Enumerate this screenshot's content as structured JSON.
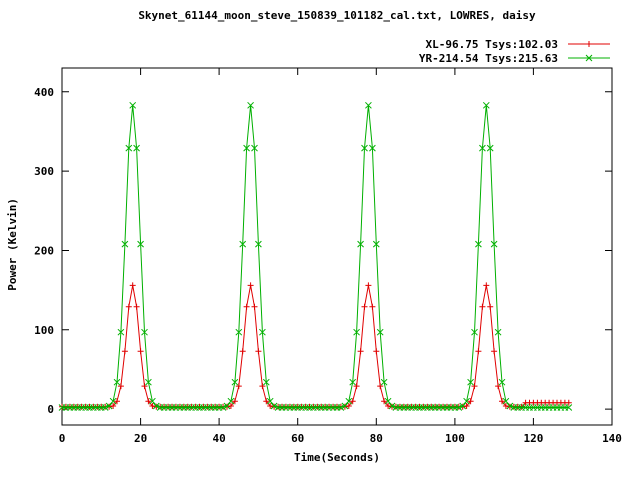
{
  "chart_data": {
    "type": "line",
    "title": "Skynet_61144_moon_steve_150839_101182_cal.txt, LOWRES, daisy",
    "xlabel": "Time(Seconds)",
    "ylabel": "Power (Kelvin)",
    "xlim": [
      0,
      140
    ],
    "ylim": [
      -20,
      430
    ],
    "x_ticks": [
      0,
      20,
      40,
      60,
      80,
      100,
      120,
      140
    ],
    "y_ticks": [
      0,
      100,
      200,
      300,
      400
    ],
    "x_start": 0,
    "x_step": 1,
    "grid": false,
    "legend_position": "top-right",
    "background": "#ffffff",
    "series": [
      {
        "name": "XL-96.75 Tsys:102.03",
        "color": "#e00000",
        "marker": "plus",
        "values": [
          3,
          3,
          3,
          3,
          3,
          3,
          3,
          3,
          3,
          3,
          3,
          3,
          3,
          4,
          10,
          29,
          73,
          129,
          156,
          129,
          73,
          29,
          10,
          4,
          3,
          3,
          3,
          3,
          3,
          3,
          3,
          3,
          3,
          3,
          3,
          3,
          3,
          3,
          3,
          3,
          3,
          3,
          3,
          4,
          10,
          29,
          73,
          129,
          156,
          129,
          73,
          29,
          10,
          4,
          3,
          3,
          3,
          3,
          3,
          3,
          3,
          3,
          3,
          3,
          3,
          3,
          3,
          3,
          3,
          3,
          3,
          3,
          3,
          4,
          10,
          29,
          73,
          129,
          156,
          129,
          73,
          29,
          10,
          4,
          3,
          3,
          3,
          3,
          3,
          3,
          3,
          3,
          3,
          3,
          3,
          3,
          3,
          3,
          3,
          3,
          3,
          3,
          3,
          4,
          10,
          29,
          73,
          129,
          156,
          129,
          73,
          29,
          10,
          4,
          3,
          3,
          3,
          3,
          8,
          8,
          8,
          8,
          8,
          8,
          8,
          8,
          8,
          8,
          8,
          8
        ]
      },
      {
        "name": "YR-214.54 Tsys:215.63",
        "color": "#00b000",
        "marker": "x",
        "values": [
          2,
          2,
          2,
          2,
          2,
          2,
          2,
          2,
          2,
          2,
          2,
          2,
          4,
          10,
          34,
          97,
          208,
          329,
          383,
          329,
          208,
          97,
          34,
          10,
          4,
          2,
          2,
          2,
          2,
          2,
          2,
          2,
          2,
          2,
          2,
          2,
          2,
          2,
          2,
          2,
          2,
          2,
          4,
          10,
          34,
          97,
          208,
          329,
          383,
          329,
          208,
          97,
          34,
          10,
          4,
          2,
          2,
          2,
          2,
          2,
          2,
          2,
          2,
          2,
          2,
          2,
          2,
          2,
          2,
          2,
          2,
          2,
          4,
          10,
          34,
          97,
          208,
          329,
          383,
          329,
          208,
          97,
          34,
          10,
          4,
          2,
          2,
          2,
          2,
          2,
          2,
          2,
          2,
          2,
          2,
          2,
          2,
          2,
          2,
          2,
          2,
          2,
          4,
          10,
          34,
          97,
          208,
          329,
          383,
          329,
          208,
          97,
          34,
          10,
          4,
          2,
          2,
          2,
          2,
          2,
          2,
          2,
          2,
          2,
          2,
          2,
          2,
          2,
          2,
          2
        ]
      }
    ]
  }
}
